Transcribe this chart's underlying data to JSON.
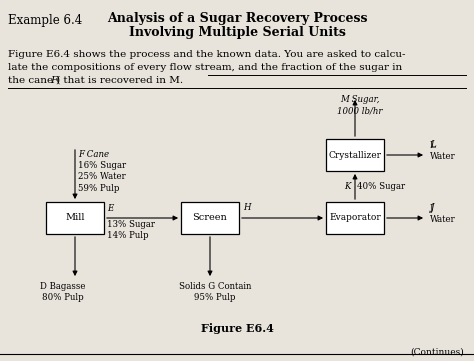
{
  "bg_color": "#e8e4dc",
  "text_color": "#1a1a1a",
  "title_example": "Example 6.4",
  "title_bold": "Analysis of a Sugar Recovery Process\nInvolving Multiple Serial Units",
  "line1": "Figure E6.4 shows the process and the known data. You are asked to calcu-",
  "line2": "late the compositions of every flow stream, and the fraction of the sugar in",
  "line3a": "the cane (",
  "line3b": "F",
  "line3c": ") that is recovered in M.",
  "figure_caption": "Figure E6.4",
  "continues": "(Continues)",
  "mill_label": "Mill",
  "screen_label": "Screen",
  "evap_label": "Evaporator",
  "crys_label": "Crystallizer",
  "f_cane_label": "F Cane",
  "f_cane_data": "16% Sugar\n25% Water\n59% Pulp",
  "d_bagasse": "D Bagasse\n80% Pulp",
  "e_label": "E",
  "e_data": "13% Sugar\n14% Pulp",
  "h_label": "H",
  "g_label": "Solids G Contain\n95% Pulp",
  "k_label": "K",
  "k_data": "40% Sugar",
  "m_label": "M Sugar,\n1000 lb/hr",
  "l_label": "L\nWater",
  "j_label": "J\nWater"
}
